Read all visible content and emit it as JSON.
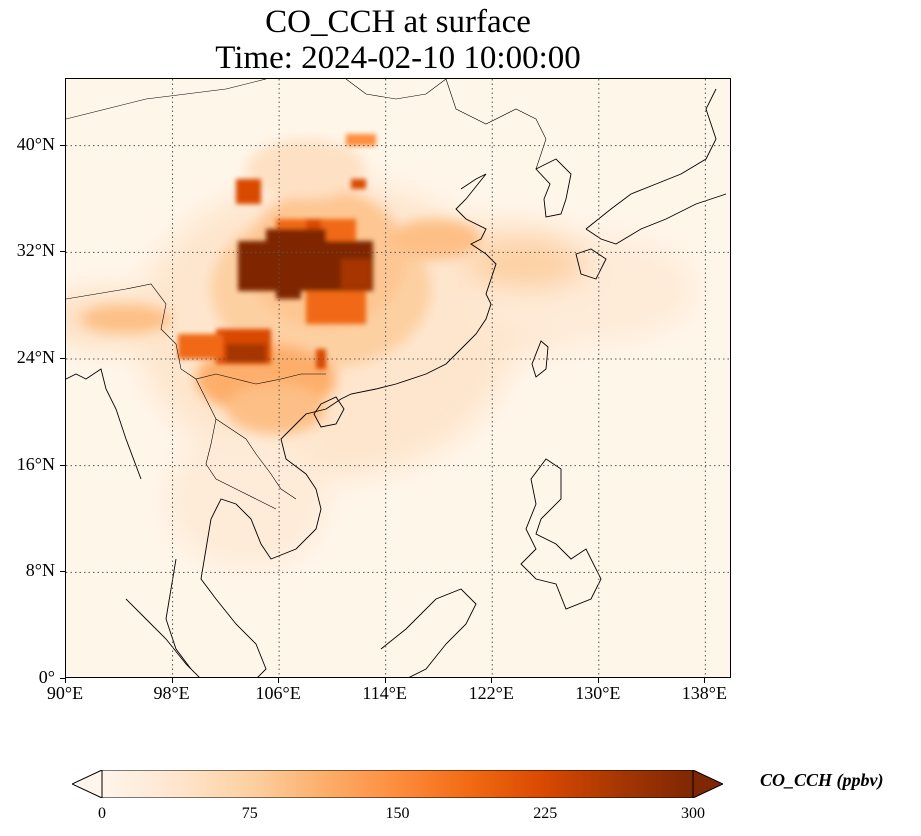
{
  "title": {
    "line1": "CO_CCH at surface",
    "line2": "Time: 2024-02-10 10:00:00"
  },
  "map": {
    "lon_range": [
      90,
      140
    ],
    "lat_range": [
      0,
      45
    ],
    "lat_ticks": [
      {
        "value": 0,
        "label": "0°"
      },
      {
        "value": 8,
        "label": "8°N"
      },
      {
        "value": 16,
        "label": "16°N"
      },
      {
        "value": 24,
        "label": "24°N"
      },
      {
        "value": 32,
        "label": "32°N"
      },
      {
        "value": 40,
        "label": "40°N"
      }
    ],
    "lon_ticks": [
      {
        "value": 90,
        "label": "90°E"
      },
      {
        "value": 98,
        "label": "98°E"
      },
      {
        "value": 106,
        "label": "106°E"
      },
      {
        "value": 114,
        "label": "114°E"
      },
      {
        "value": 122,
        "label": "122°E"
      },
      {
        "value": 130,
        "label": "130°E"
      },
      {
        "value": 138,
        "label": "138°E"
      }
    ],
    "gridlines": "dotted"
  },
  "colorbar": {
    "label": "CO_CCH (ppbv)",
    "min": 0,
    "max": 300,
    "extend": "both",
    "colors": [
      "#fff5eb",
      "#fee6ce",
      "#fdd0a2",
      "#fdae6b",
      "#fd8d3c",
      "#f16913",
      "#d94801",
      "#a63603",
      "#7f2704"
    ],
    "ticks": [
      {
        "value": 0,
        "label": "0"
      },
      {
        "value": 75,
        "label": "75"
      },
      {
        "value": 150,
        "label": "150"
      },
      {
        "value": 225,
        "label": "225"
      },
      {
        "value": 300,
        "label": "300"
      }
    ]
  }
}
